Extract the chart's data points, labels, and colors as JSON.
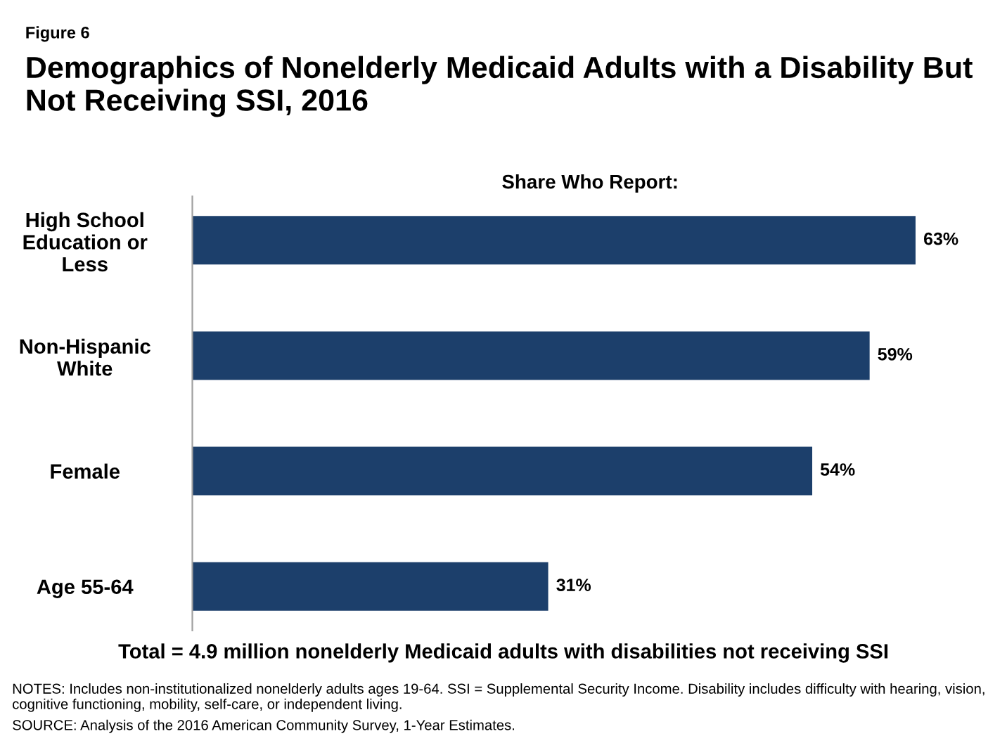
{
  "chart_data": {
    "type": "bar",
    "orientation": "horizontal",
    "title": "Demographics of Nonelderly Medicaid Adults with a Disability But Not Receiving SSI, 2016",
    "subtitle": "Share Who Report:",
    "categories": [
      "High School Education or Less",
      "Non-Hispanic White",
      "Female",
      "Age 55-64"
    ],
    "values": [
      63,
      59,
      54,
      31
    ],
    "value_labels": [
      "63%",
      "59%",
      "54%",
      "31%"
    ],
    "color": "#1c3f6b",
    "legend": false,
    "grid": false,
    "annotations": [
      "Figure 6",
      "Total = 4.9 million nonelderly Medicaid adults with disabilities not receiving SSI",
      "NOTES: Includes non-institutionalized nonelderly adults ages 19-64. SSI = Supplemental Security Income. Disability includes difficulty with hearing, vision, cognitive functioning, mobility, self-care, or independent living.",
      "SOURCE: Analysis of the 2016 American Community Survey, 1-Year Estimates."
    ]
  }
}
